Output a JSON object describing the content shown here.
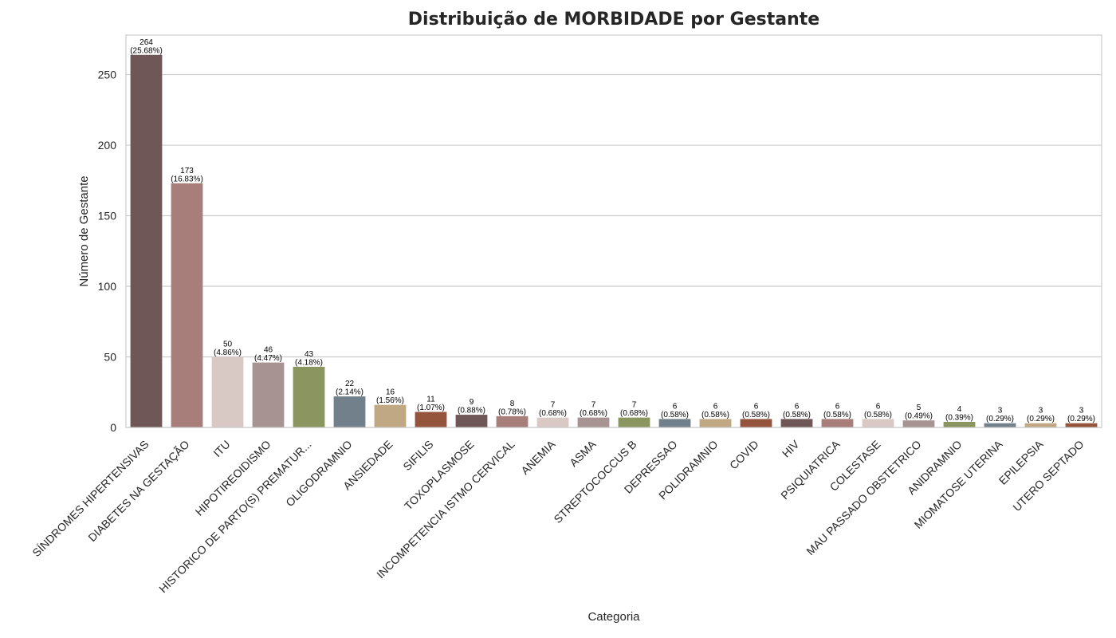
{
  "chart_data": {
    "type": "bar",
    "title": "Distribuição de MORBIDADE por Gestante",
    "xlabel": "Categoria",
    "ylabel": "Número de Gestante",
    "ylim": [
      0,
      278
    ],
    "yticks": [
      0,
      50,
      100,
      150,
      200,
      250
    ],
    "grid": true,
    "categories": [
      "SÍNDROMES HIPERTENSIVAS",
      "DIABETES NA GESTAÇÃO",
      "ITU",
      "HIPOTIREOIDISMO",
      "HISTORICO DE PARTO(S) PREMATUR...",
      "OLIGODRAMNIO",
      "ANSIEDADE",
      "SIFILIS",
      "TOXOPLASMOSE",
      "INCOMPETENCIA ISTMO CERVICAL",
      "ANEMIA",
      "ASMA",
      "STREPTOCOCCUS B",
      "DEPRESSAO",
      "POLIDRAMNIO",
      "COVID",
      "HIV",
      "PSIQUIATRICA",
      "COLESTASE",
      "MAU PASSADO OBSTETRICO",
      "ANIDRAMNIO",
      "MIOMATOSE UTERINA",
      "EPILEPSIA",
      "UTERO SEPTADO"
    ],
    "values": [
      264,
      173,
      50,
      46,
      43,
      22,
      16,
      11,
      9,
      8,
      7,
      7,
      7,
      6,
      6,
      6,
      6,
      6,
      6,
      5,
      4,
      3,
      3,
      3
    ],
    "data_labels": [
      "264\n(25.68%)",
      "173\n(16.83%)",
      "50\n(4.86%)",
      "46\n(4.47%)",
      "43\n(4.18%)",
      "22\n(2.14%)",
      "16\n(1.56%)",
      "11\n(1.07%)",
      "9\n(0.88%)",
      "8\n(0.78%)",
      "7\n(0.68%)",
      "7\n(0.68%)",
      "7\n(0.68%)",
      "6\n(0.58%)",
      "6\n(0.58%)",
      "6\n(0.58%)",
      "6\n(0.58%)",
      "6\n(0.58%)",
      "6\n(0.58%)",
      "5\n(0.49%)",
      "4\n(0.39%)",
      "3\n(0.29%)",
      "3\n(0.29%)",
      "3\n(0.29%)"
    ],
    "colors": [
      "#6e5756",
      "#a77e79",
      "#d9c9c5",
      "#a89393",
      "#8a9560",
      "#72808b",
      "#bfa883",
      "#94553c",
      "#6e5756",
      "#a77e79",
      "#d9c9c5",
      "#a89393",
      "#8a9560",
      "#72808b",
      "#bfa883",
      "#94553c",
      "#6e5756",
      "#a77e79",
      "#d9c9c5",
      "#a89393",
      "#8a9560",
      "#72808b",
      "#bfa883",
      "#94553c"
    ],
    "grid_color": "#cccccc",
    "frame_color": "#cccccc"
  }
}
